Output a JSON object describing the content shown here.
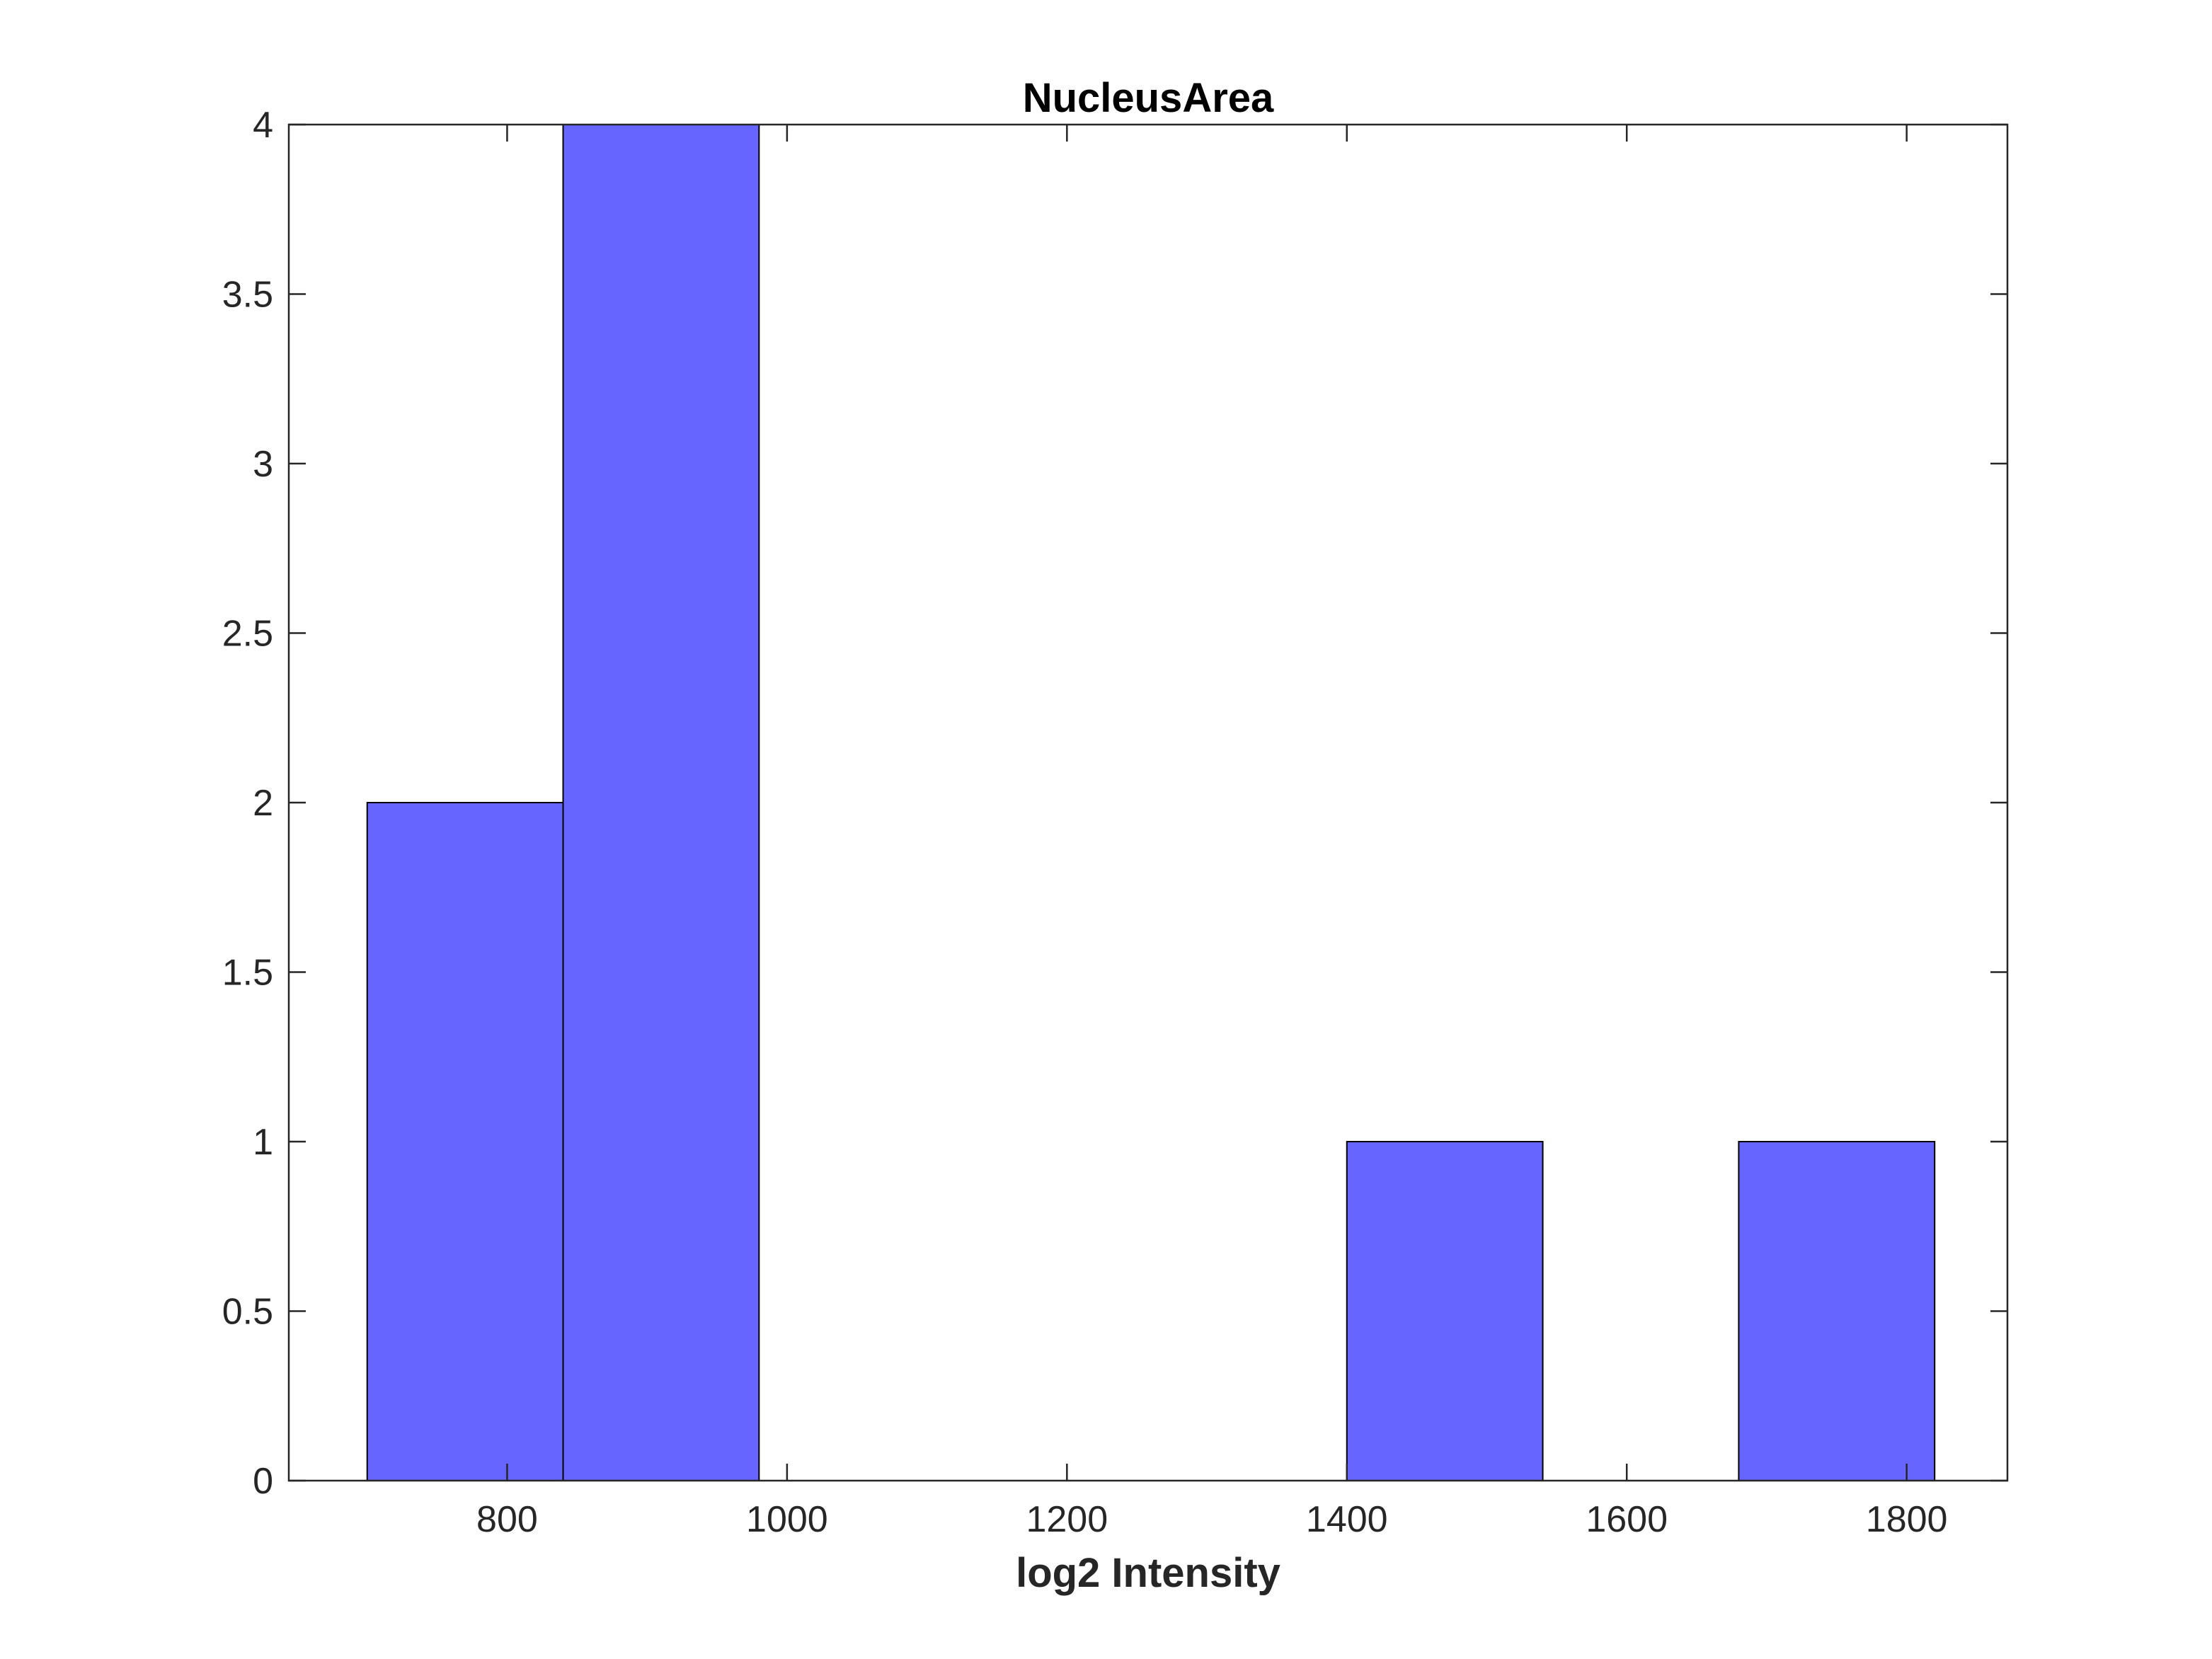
{
  "chart_data": {
    "type": "bar",
    "subtype": "histogram",
    "title": "NucleusArea",
    "xlabel": "log2 Intensity",
    "ylabel": "",
    "xlim": [
      644,
      1872
    ],
    "ylim": [
      0,
      4
    ],
    "xticks": [
      800,
      1000,
      1200,
      1400,
      1600,
      1800
    ],
    "yticks": [
      0,
      0.5,
      1,
      1.5,
      2,
      2.5,
      3,
      3.5,
      4
    ],
    "xtick_labels": [
      "800",
      "1000",
      "1200",
      "1400",
      "1600",
      "1800"
    ],
    "ytick_labels": [
      "0",
      "0.5",
      "1",
      "1.5",
      "2",
      "2.5",
      "3",
      "3.5",
      "4"
    ],
    "bins": [
      {
        "x0": 700,
        "x1": 840,
        "count": 2
      },
      {
        "x0": 840,
        "x1": 980,
        "count": 4
      },
      {
        "x0": 980,
        "x1": 1120,
        "count": 0
      },
      {
        "x0": 1120,
        "x1": 1260,
        "count": 0
      },
      {
        "x0": 1260,
        "x1": 1400,
        "count": 0
      },
      {
        "x0": 1400,
        "x1": 1540,
        "count": 1
      },
      {
        "x0": 1540,
        "x1": 1680,
        "count": 0
      },
      {
        "x0": 1680,
        "x1": 1820,
        "count": 1
      }
    ],
    "bar_color": "#6666ff",
    "edge_color": "#000000",
    "axes_color": "#262626",
    "grid": false,
    "legend": "none"
  }
}
